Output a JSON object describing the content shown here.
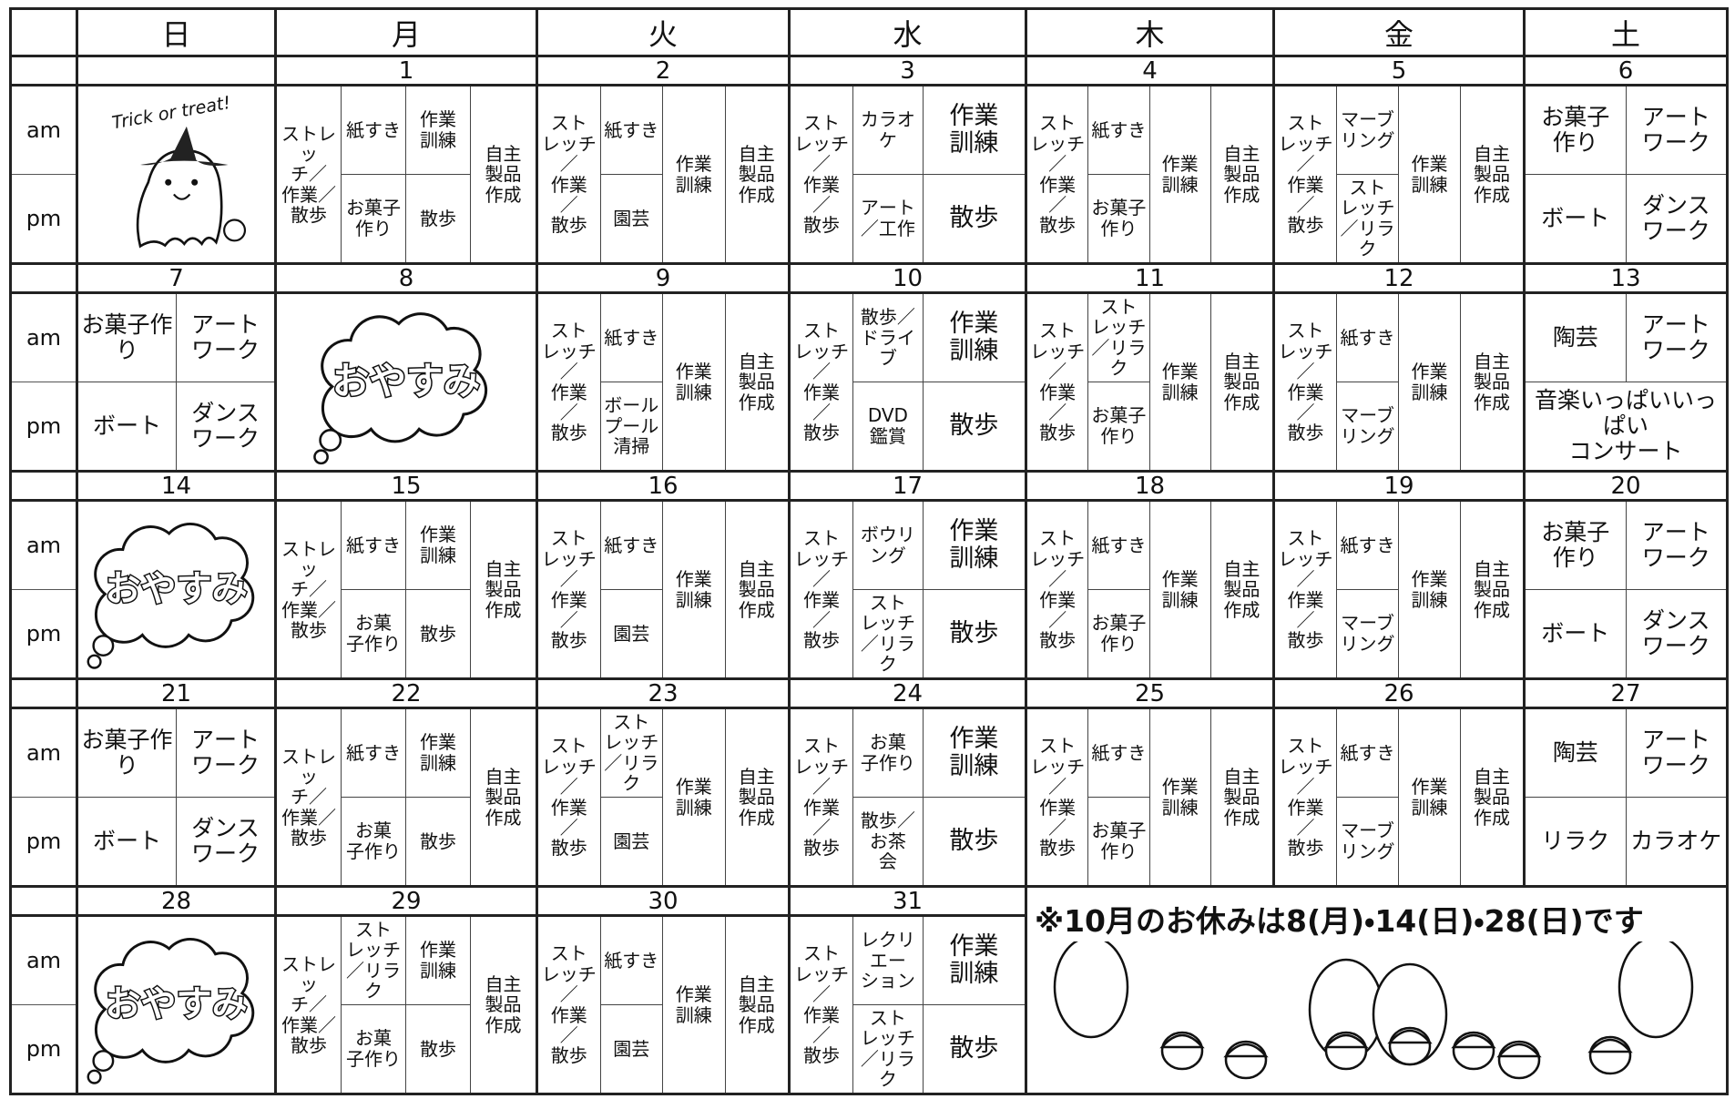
{
  "days": [
    "日",
    "月",
    "火",
    "水",
    "木",
    "金",
    "土"
  ],
  "periods": [
    "am",
    "pm"
  ],
  "notice": "※10月のお休みは8(月)・14(日)・28(日)です",
  "weeks": [
    {
      "dates": [
        null,
        1,
        2,
        3,
        4,
        5,
        6
      ],
      "cells": [
        {
          "greeting": "Trick or treat!"
        },
        {
          "cols": [
            [
              "ストレッ\nチ／\n作業／\n散歩"
            ],
            [
              "紙すき",
              "お菓子\n作り"
            ],
            [
              "作業\n訓練",
              "散歩"
            ],
            [
              "自主\n製品\n作成"
            ]
          ]
        },
        {
          "cols": [
            [
              "スト\nレッチ\n／\n作業\n／\n散歩"
            ],
            [
              "紙すき",
              "園芸"
            ],
            [
              "作業\n訓練"
            ],
            [
              "自主\n製品\n作成"
            ]
          ]
        },
        {
          "cols": [
            [
              "スト\nレッチ\n／\n作業\n／\n散歩"
            ],
            [
              "カラオ\nケ",
              "アート\n／工作"
            ],
            [
              "作業\n訓練",
              "散歩"
            ]
          ]
        },
        {
          "cols": [
            [
              "スト\nレッチ\n／\n作業\n／\n散歩"
            ],
            [
              "紙すき",
              "お菓子\n作り"
            ],
            [
              "作業\n訓練"
            ],
            [
              "自主\n製品\n作成"
            ]
          ]
        },
        {
          "cols": [
            [
              "スト\nレッチ\n／\n作業\n／\n散歩"
            ],
            [
              "マーブ\nリング",
              "スト\nレッチ\n／リラ\nク"
            ],
            [
              "作業\n訓練"
            ],
            [
              "自主\n製品\n作成"
            ]
          ]
        },
        {
          "am": [
            "お菓子\n作り",
            "アート\nワーク"
          ],
          "pm": [
            "ボート",
            "ダンス\nワーク"
          ]
        }
      ]
    },
    {
      "dates": [
        7,
        8,
        9,
        10,
        11,
        12,
        13
      ],
      "cells": [
        {
          "am": [
            "お菓子作り",
            "アート\nワーク"
          ],
          "pm": [
            "ボート",
            "ダンス\nワーク"
          ]
        },
        {
          "holiday": "おやすみ"
        },
        {
          "cols": [
            [
              "スト\nレッチ\n／\n作業\n／\n散歩"
            ],
            [
              "紙すき",
              "ボール\nプール\n清掃"
            ],
            [
              "作業\n訓練"
            ],
            [
              "自主\n製品\n作成"
            ]
          ]
        },
        {
          "cols": [
            [
              "スト\nレッチ\n／\n作業\n／\n散歩"
            ],
            [
              "散歩／\nドライ\nブ",
              "DVD\n鑑賞"
            ],
            [
              "作業\n訓練",
              "散歩"
            ]
          ]
        },
        {
          "cols": [
            [
              "スト\nレッチ\n／\n作業\n／\n散歩"
            ],
            [
              "スト\nレッチ\n／リラ\nク",
              "お菓子\n作り"
            ],
            [
              "作業\n訓練"
            ],
            [
              "自主\n製品\n作成"
            ]
          ]
        },
        {
          "cols": [
            [
              "スト\nレッチ\n／\n作業\n／\n散歩"
            ],
            [
              "紙すき",
              "マーブ\nリング"
            ],
            [
              "作業\n訓練"
            ],
            [
              "自主\n製品\n作成"
            ]
          ]
        },
        {
          "am": [
            "陶芸",
            "アート\nワーク"
          ],
          "pm": [
            "音楽いっぱいいっぱい\nコンサート"
          ]
        }
      ]
    },
    {
      "dates": [
        14,
        15,
        16,
        17,
        18,
        19,
        20
      ],
      "cells": [
        {
          "holiday": "おやすみ"
        },
        {
          "cols": [
            [
              "ストレッ\nチ／\n作業／\n散歩"
            ],
            [
              "紙すき",
              "お菓\n子作り"
            ],
            [
              "作業\n訓練",
              "散歩"
            ],
            [
              "自主\n製品\n作成"
            ]
          ]
        },
        {
          "cols": [
            [
              "スト\nレッチ\n／\n作業\n／\n散歩"
            ],
            [
              "紙すき",
              "園芸"
            ],
            [
              "作業\n訓練"
            ],
            [
              "自主\n製品\n作成"
            ]
          ]
        },
        {
          "cols": [
            [
              "スト\nレッチ\n／\n作業\n／\n散歩"
            ],
            [
              "ボウリ\nング",
              "スト\nレッチ\n／リラク"
            ],
            [
              "作業\n訓練",
              "散歩"
            ]
          ]
        },
        {
          "cols": [
            [
              "スト\nレッチ\n／\n作業\n／\n散歩"
            ],
            [
              "紙すき",
              "お菓子\n作り"
            ],
            [
              "作業\n訓練"
            ],
            [
              "自主\n製品\n作成"
            ]
          ]
        },
        {
          "cols": [
            [
              "スト\nレッチ\n／\n作業\n／\n散歩"
            ],
            [
              "紙すき",
              "マーブ\nリング"
            ],
            [
              "作業\n訓練"
            ],
            [
              "自主\n製品\n作成"
            ]
          ]
        },
        {
          "am": [
            "お菓子\n作り",
            "アート\nワーク"
          ],
          "pm": [
            "ボート",
            "ダンス\nワーク"
          ]
        }
      ]
    },
    {
      "dates": [
        21,
        22,
        23,
        24,
        25,
        26,
        27
      ],
      "cells": [
        {
          "am": [
            "お菓子作り",
            "アート\nワーク"
          ],
          "pm": [
            "ボート",
            "ダンス\nワーク"
          ]
        },
        {
          "cols": [
            [
              "ストレッ\nチ／\n作業／\n散歩"
            ],
            [
              "紙すき",
              "お菓\n子作り"
            ],
            [
              "作業\n訓練",
              "散歩"
            ],
            [
              "自主\n製品\n作成"
            ]
          ]
        },
        {
          "cols": [
            [
              "スト\nレッチ\n／\n作業\n／\n散歩"
            ],
            [
              "スト\nレッチ\n／リラ\nク",
              "園芸"
            ],
            [
              "作業\n訓練"
            ],
            [
              "自主\n製品\n作成"
            ]
          ]
        },
        {
          "cols": [
            [
              "スト\nレッチ\n／\n作業\n／\n散歩"
            ],
            [
              "お菓\n子作り",
              "散歩／\nお茶\n会"
            ],
            [
              "作業\n訓練",
              "散歩"
            ]
          ]
        },
        {
          "cols": [
            [
              "スト\nレッチ\n／\n作業\n／\n散歩"
            ],
            [
              "紙すき",
              "お菓子\n作り"
            ],
            [
              "作業\n訓練"
            ],
            [
              "自主\n製品\n作成"
            ]
          ]
        },
        {
          "cols": [
            [
              "スト\nレッチ\n／\n作業\n／\n散歩"
            ],
            [
              "紙すき",
              "マーブ\nリング"
            ],
            [
              "作業\n訓練"
            ],
            [
              "自主\n製品\n作成"
            ]
          ]
        },
        {
          "am": [
            "陶芸",
            "アート\nワーク"
          ],
          "pm": [
            "リラク",
            "カラオケ"
          ]
        }
      ]
    },
    {
      "dates": [
        28,
        29,
        30,
        31
      ],
      "cells": [
        {
          "holiday": "おやすみ"
        },
        {
          "cols": [
            [
              "ストレッ\nチ／\n作業／\n散歩"
            ],
            [
              "スト\nレッチ\n／リラ\nク",
              "お菓\n子作り"
            ],
            [
              "作業\n訓練",
              "散歩"
            ],
            [
              "自主\n製品\n作成"
            ]
          ]
        },
        {
          "cols": [
            [
              "スト\nレッチ\n／\n作業\n／\n散歩"
            ],
            [
              "紙すき",
              "園芸"
            ],
            [
              "作業\n訓練"
            ],
            [
              "自主\n製品\n作成"
            ]
          ]
        },
        {
          "cols": [
            [
              "スト\nレッチ\n／\n作業\n／\n散歩"
            ],
            [
              "レクリ\nエー\nション",
              "スト\nレッチ\n／リラク"
            ],
            [
              "作業\n訓練",
              "散歩"
            ]
          ]
        }
      ]
    }
  ]
}
